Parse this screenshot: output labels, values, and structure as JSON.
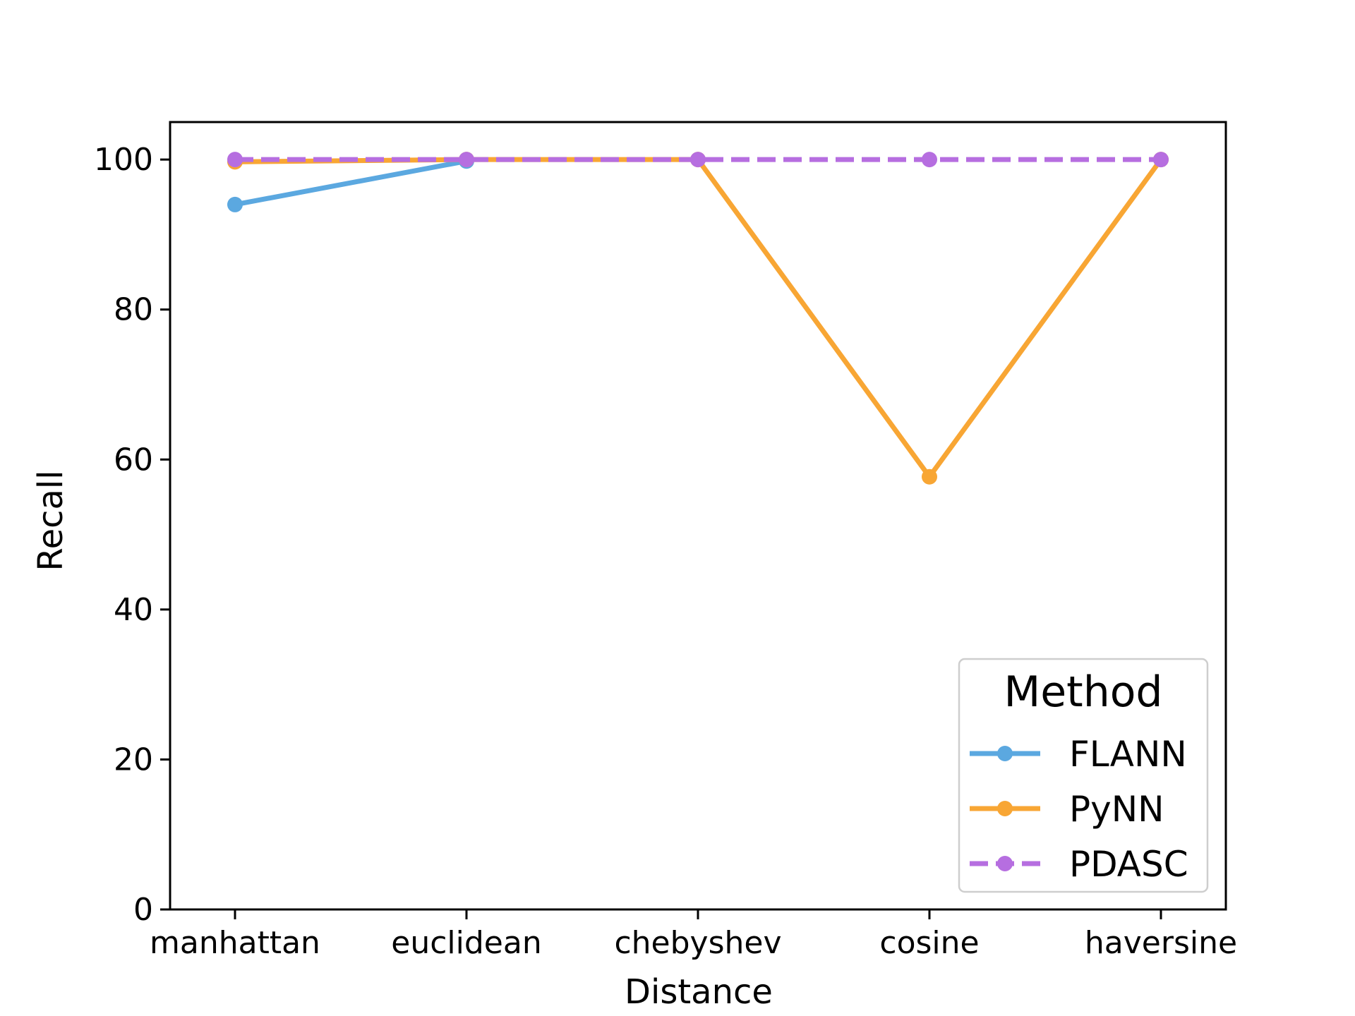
{
  "chart_data": {
    "type": "line",
    "title": "",
    "xlabel": "Distance",
    "ylabel": "Recall",
    "categories": [
      "manhattan",
      "euclidean",
      "chebyshev",
      "cosine",
      "haversine"
    ],
    "ylim": [
      0,
      105
    ],
    "yticks": [
      0,
      20,
      40,
      60,
      80,
      100
    ],
    "grid": false,
    "legend": {
      "title": "Method",
      "placement": "lower-right"
    },
    "series": [
      {
        "name": "FLANN",
        "color": "#5ba8e0",
        "style": "solid",
        "marker": "circle",
        "x": [
          "manhattan",
          "euclidean"
        ],
        "values": [
          94.0,
          99.8
        ]
      },
      {
        "name": "PyNN",
        "color": "#f8a634",
        "style": "solid",
        "marker": "circle",
        "x": [
          "manhattan",
          "euclidean",
          "chebyshev",
          "cosine",
          "haversine"
        ],
        "values": [
          99.7,
          100.0,
          100.0,
          57.7,
          100.0
        ]
      },
      {
        "name": "PDASC",
        "color": "#b66ee0",
        "style": "dashed",
        "marker": "circle",
        "x": [
          "manhattan",
          "euclidean",
          "chebyshev",
          "cosine",
          "haversine"
        ],
        "values": [
          100.0,
          100.0,
          100.0,
          100.0,
          100.0
        ]
      }
    ]
  }
}
